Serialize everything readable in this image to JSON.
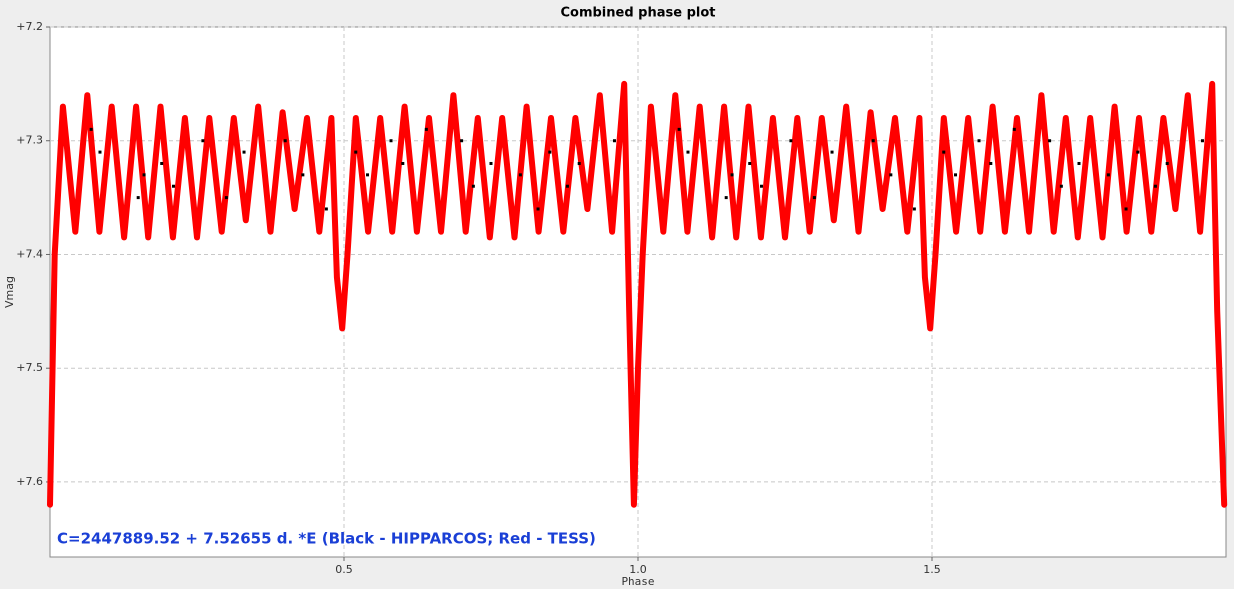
{
  "chart_data": {
    "type": "scatter",
    "title": "Combined phase plot",
    "x_label": "Phase",
    "y_label": "Vmag",
    "annotation": "C=2447889.52 + 7.52655 d. *E (Black - HIPPARCOS; Red - TESS)",
    "annotation_color": "#1a3fd6",
    "xlim": [
      0,
      2
    ],
    "ylim": [
      7.2,
      7.666
    ],
    "y_inverted": true,
    "grid": true,
    "xticks": [
      0.5,
      {
        "value": 1,
        "label": "1.0"
      },
      1.5
    ],
    "yticks": [
      {
        "value": 7.2,
        "label": "+7.2"
      },
      {
        "value": 7.3,
        "label": "+7.3"
      },
      {
        "value": 7.4,
        "label": "+7.4"
      },
      {
        "value": 7.5,
        "label": "+7.5"
      },
      {
        "value": 7.6,
        "label": "+7.6"
      }
    ],
    "series": [
      {
        "name": "TESS",
        "color": "#ff0000",
        "mode": "line",
        "x": [
          0,
          0.008,
          0.022,
          0.043,
          0.0635,
          0.084,
          0.105,
          0.126,
          0.1465,
          0.167,
          0.188,
          0.209,
          0.2295,
          0.25,
          0.271,
          0.292,
          0.3125,
          0.333,
          0.354,
          0.375,
          0.3955,
          0.416,
          0.437,
          0.458,
          0.4785,
          0.488,
          0.497,
          0.506,
          0.52,
          0.541,
          0.5615,
          0.582,
          0.603,
          0.624,
          0.6445,
          0.665,
          0.686,
          0.707,
          0.7275,
          0.748,
          0.769,
          0.79,
          0.8105,
          0.831,
          0.852,
          0.873,
          0.8935,
          0.914,
          0.935,
          0.956,
          0.9765,
          0.985,
          0.993,
          1.0,
          1.008,
          1.022,
          1.043,
          1.0635,
          1.084,
          1.105,
          1.126,
          1.1465,
          1.167,
          1.188,
          1.209,
          1.2295,
          1.25,
          1.271,
          1.292,
          1.3125,
          1.333,
          1.354,
          1.375,
          1.3955,
          1.416,
          1.437,
          1.458,
          1.4785,
          1.488,
          1.497,
          1.506,
          1.52,
          1.541,
          1.5615,
          1.582,
          1.603,
          1.624,
          1.6445,
          1.665,
          1.686,
          1.707,
          1.7275,
          1.748,
          1.769,
          1.79,
          1.8105,
          1.831,
          1.852,
          1.873,
          1.8935,
          1.914,
          1.935,
          1.956,
          1.9765,
          1.985,
          1.997
        ],
        "values": [
          7.62,
          7.4,
          7.27,
          7.38,
          7.26,
          7.38,
          7.27,
          7.385,
          7.27,
          7.385,
          7.27,
          7.385,
          7.28,
          7.385,
          7.28,
          7.38,
          7.28,
          7.37,
          7.27,
          7.38,
          7.275,
          7.36,
          7.28,
          7.38,
          7.28,
          7.42,
          7.465,
          7.4,
          7.28,
          7.38,
          7.28,
          7.38,
          7.27,
          7.38,
          7.28,
          7.38,
          7.26,
          7.38,
          7.28,
          7.385,
          7.28,
          7.385,
          7.27,
          7.38,
          7.28,
          7.38,
          7.28,
          7.36,
          7.26,
          7.38,
          7.25,
          7.45,
          7.62,
          7.5,
          7.4,
          7.27,
          7.38,
          7.26,
          7.38,
          7.27,
          7.385,
          7.27,
          7.385,
          7.27,
          7.385,
          7.28,
          7.385,
          7.28,
          7.38,
          7.28,
          7.37,
          7.27,
          7.38,
          7.275,
          7.36,
          7.28,
          7.38,
          7.28,
          7.42,
          7.465,
          7.4,
          7.28,
          7.38,
          7.28,
          7.38,
          7.27,
          7.38,
          7.28,
          7.38,
          7.26,
          7.38,
          7.28,
          7.385,
          7.28,
          7.385,
          7.27,
          7.38,
          7.28,
          7.38,
          7.28,
          7.36,
          7.26,
          7.38,
          7.25,
          7.45,
          7.62
        ]
      },
      {
        "name": "HIPPARCOS",
        "color": "#000000",
        "mode": "points",
        "x": [
          0.07,
          0.085,
          0.15,
          0.16,
          0.19,
          0.21,
          0.26,
          0.3,
          0.33,
          0.4,
          0.43,
          0.47,
          0.52,
          0.54,
          0.58,
          0.6,
          0.64,
          0.7,
          0.72,
          0.75,
          0.8,
          0.83,
          0.85,
          0.88,
          0.9,
          0.96,
          1.07,
          1.085,
          1.15,
          1.16,
          1.19,
          1.21,
          1.26,
          1.3,
          1.33,
          1.4,
          1.43,
          1.47,
          1.52,
          1.54,
          1.58,
          1.6,
          1.64,
          1.7,
          1.72,
          1.75,
          1.8,
          1.83,
          1.85,
          1.88,
          1.9,
          1.96
        ],
        "values": [
          7.29,
          7.31,
          7.35,
          7.33,
          7.32,
          7.34,
          7.3,
          7.35,
          7.31,
          7.3,
          7.33,
          7.36,
          7.31,
          7.33,
          7.3,
          7.32,
          7.29,
          7.3,
          7.34,
          7.32,
          7.33,
          7.36,
          7.31,
          7.34,
          7.32,
          7.3,
          7.29,
          7.31,
          7.35,
          7.33,
          7.32,
          7.34,
          7.3,
          7.35,
          7.31,
          7.3,
          7.33,
          7.36,
          7.31,
          7.33,
          7.3,
          7.32,
          7.29,
          7.3,
          7.34,
          7.32,
          7.33,
          7.36,
          7.31,
          7.34,
          7.32,
          7.3
        ]
      }
    ]
  }
}
